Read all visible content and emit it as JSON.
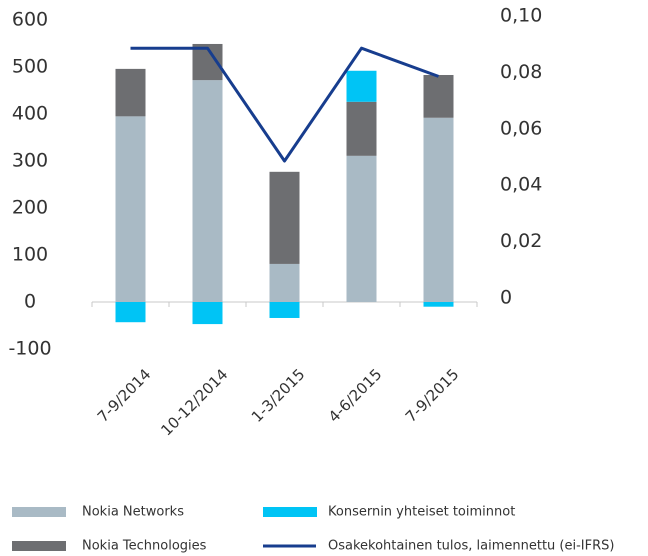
{
  "chart_data": {
    "type": "bar",
    "stacked": true,
    "categories": [
      "7-9/2014",
      "10-12/2014",
      "1-3/2015",
      "4-6/2015",
      "7-9/2015"
    ],
    "series": [
      {
        "name": "Nokia Networks",
        "color": "#a9bac5",
        "values": [
          395,
          472,
          81,
          311,
          392
        ]
      },
      {
        "name": "Nokia Technologies",
        "color": "#6d6e71",
        "values": [
          101,
          77,
          196,
          115,
          91
        ]
      },
      {
        "name": "Konsernin yhteiset toiminnot",
        "color": "#00c4f5",
        "values": [
          -43,
          -47,
          -34,
          66,
          -10
        ]
      },
      {
        "name": "Osakekohtainen tulos, laimennettu (ei-IFRS)",
        "color": "#173d8e",
        "type": "line",
        "axis": "y2",
        "values": [
          0.09,
          0.09,
          0.05,
          0.09,
          0.08
        ]
      }
    ],
    "ylim": [
      -100,
      600
    ],
    "yticks": [
      -100,
      0,
      100,
      200,
      300,
      400,
      500,
      600
    ],
    "y2lim": [
      -0.0166667,
      0.1
    ],
    "y2ticks": [
      0,
      {
        "value": 0.02,
        "label": "0,02"
      },
      {
        "value": 0.04,
        "label": "0,04"
      },
      {
        "value": 0.06,
        "label": "0,06"
      },
      {
        "value": 0.08,
        "label": "0,08"
      },
      {
        "value": 0.1,
        "label": "0,10"
      }
    ],
    "grid": false
  }
}
